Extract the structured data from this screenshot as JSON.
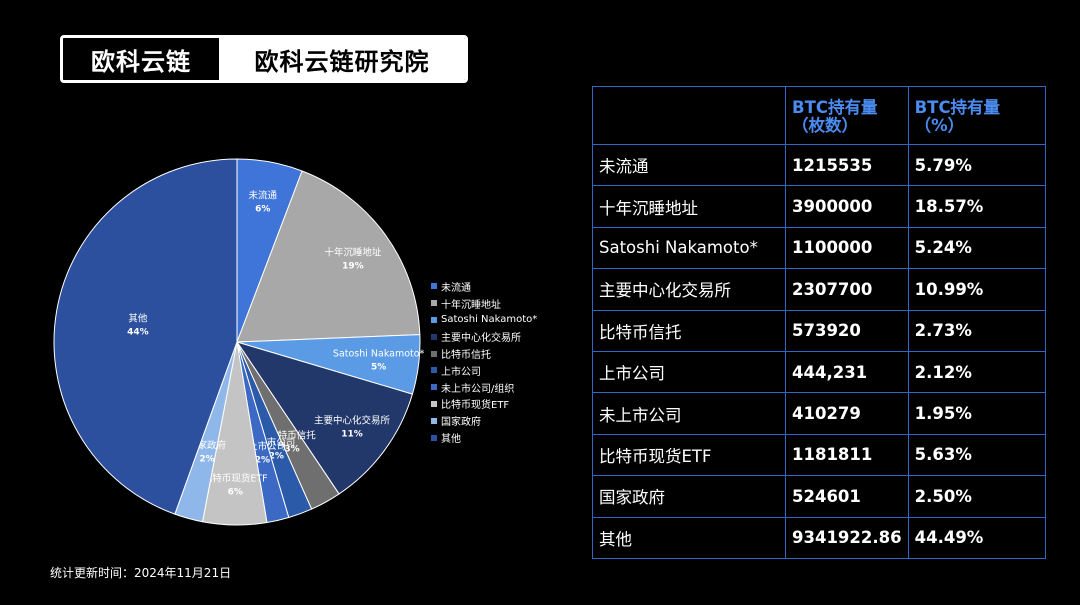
{
  "brand": {
    "logo": "欧科云链",
    "name": "欧科云链研究院"
  },
  "footnote": "统计更新时间：2024年11月21日",
  "table": {
    "headers": {
      "name": "",
      "count": [
        "BTC持有量",
        "（枚数）"
      ],
      "pct": [
        "BTC持有量",
        "（%）"
      ]
    },
    "rows": [
      {
        "name": "未流通",
        "count": "1215535",
        "pct": "5.79%"
      },
      {
        "name": "十年沉睡地址",
        "count": "3900000",
        "pct": "18.57%"
      },
      {
        "name": "Satoshi Nakamoto*",
        "count": "1100000",
        "pct": "5.24%"
      },
      {
        "name": "主要中心化交易所",
        "count": "2307700",
        "pct": "10.99%"
      },
      {
        "name": "比特币信托",
        "count": "573920",
        "pct": "2.73%"
      },
      {
        "name": "上市公司",
        "count": "444,231",
        "pct": "2.12%"
      },
      {
        "name": "未上市公司",
        "count": "410279",
        "pct": "1.95%"
      },
      {
        "name": "比特币现货ETF",
        "count": "1181811",
        "pct": "5.63%"
      },
      {
        "name": "国家政府",
        "count": "524601",
        "pct": "2.50%"
      },
      {
        "name": "其他",
        "count": "9341922.86",
        "pct": "44.49%"
      }
    ]
  },
  "chart_data": {
    "type": "pie",
    "start": "top",
    "direction": "clockwise",
    "legend_position": "right",
    "slices": [
      {
        "name": "未流通",
        "legend": "未流通",
        "value": 5.79,
        "label": "6%",
        "color": "#3f74d8"
      },
      {
        "name": "十年沉睡地址",
        "legend": "十年沉睡地址",
        "value": 18.57,
        "label": "19%",
        "color": "#a8a8a8"
      },
      {
        "name": "Satoshi Nakamoto*",
        "legend": "Satoshi Nakamoto*",
        "value": 5.24,
        "label": "5%",
        "color": "#5b9be6"
      },
      {
        "name": "主要中心化交易所",
        "legend": "主要中心化交易所",
        "value": 10.99,
        "label": "11%",
        "color": "#22376a"
      },
      {
        "name": "比特币信托",
        "legend": "比特币信托",
        "value": 2.73,
        "label": "3%",
        "color": "#6f6f6f"
      },
      {
        "name": "上市公司",
        "legend": "上市公司",
        "value": 2.12,
        "label": "2%",
        "color": "#2a5aa8"
      },
      {
        "name": "未上市公司",
        "legend": "未上市公司/组织",
        "value": 1.95,
        "label": "2%",
        "color": "#3c69c4"
      },
      {
        "name": "比特币现货ETF",
        "legend": "比特币现货ETF",
        "value": 5.63,
        "label": "6%",
        "color": "#c4c4c4"
      },
      {
        "name": "国家政府",
        "legend": "国家政府",
        "value": 2.5,
        "label": "2%",
        "color": "#8fb7ea"
      },
      {
        "name": "其他",
        "legend": "其他",
        "value": 44.49,
        "label": "44%",
        "color": "#2c509e"
      }
    ]
  }
}
